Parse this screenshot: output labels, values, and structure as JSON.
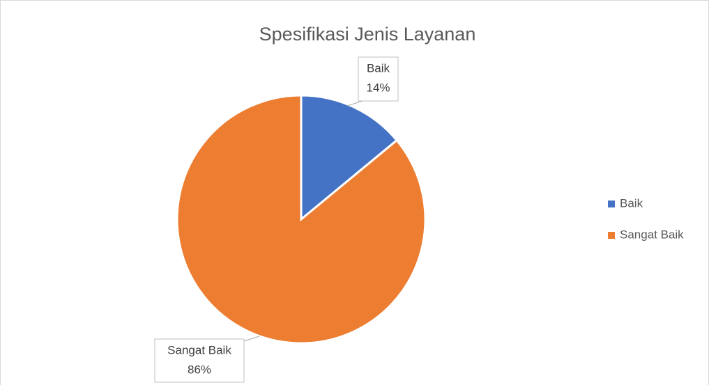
{
  "chart_data": {
    "type": "pie",
    "title": "Spesifikasi Jenis Layanan",
    "categories": [
      "Baik",
      "Sangat Baik"
    ],
    "values": [
      14,
      86
    ],
    "value_labels": [
      "14%",
      "86%"
    ],
    "colors": [
      "#4472c4",
      "#ed7d31"
    ],
    "legend": "right"
  }
}
